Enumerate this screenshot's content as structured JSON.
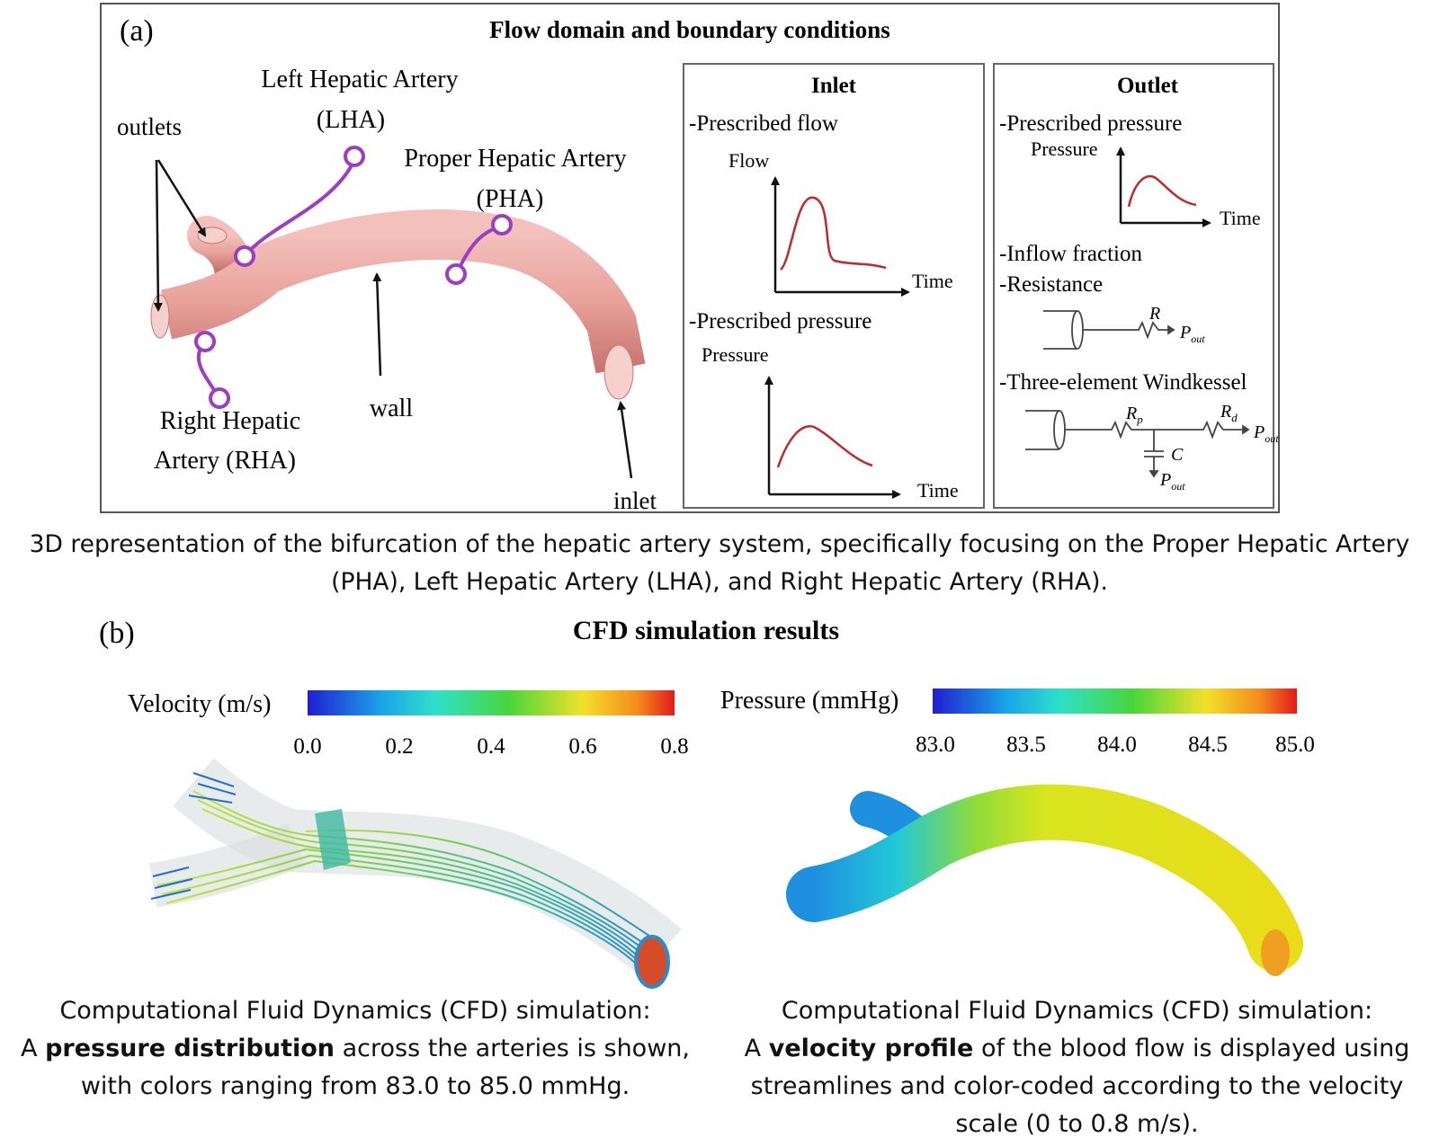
{
  "panel_a": {
    "label": "(a)",
    "title": "Flow domain and boundary conditions",
    "labels": {
      "outlets": "outlets",
      "lha_line1": "Left Hepatic Artery",
      "lha_line2": "(LHA)",
      "pha_line1": "Proper Hepatic Artery",
      "pha_line2": "(PHA)",
      "rha_line1": "Right Hepatic",
      "rha_line2": "Artery (RHA)",
      "wall": "wall",
      "inlet": "inlet"
    },
    "inlet_box": {
      "title": "Inlet",
      "item1": "-Prescribed flow",
      "flow_axis": "Flow",
      "time1": "Time",
      "item2": "-Prescribed pressure",
      "pressure_axis": "Pressure",
      "time2": "Time"
    },
    "outlet_box": {
      "title": "Outlet",
      "item1": "-Prescribed pressure",
      "pressure_axis": "Pressure",
      "time": "Time",
      "item2": "-Inflow fraction",
      "item3": "-Resistance",
      "r": "R",
      "pout1": "P",
      "pout_sub": "out",
      "item4": "-Three-element Windkessel",
      "rp": "R",
      "rp_sub": "p",
      "rd": "R",
      "rd_sub": "d",
      "c": "C",
      "pout2": "P",
      "pout3": "P"
    },
    "caption": "3D representation of the bifurcation of the hepatic artery system, specifically focusing on the Proper Hepatic Artery (PHA), Left Hepatic Artery (LHA), and Right Hepatic Artery (RHA)."
  },
  "panel_b": {
    "label": "(b)",
    "title": "CFD simulation results",
    "velocity_scale": {
      "label": "Velocity (m/s)",
      "ticks": [
        "0.0",
        "0.2",
        "0.4",
        "0.6",
        "0.8"
      ]
    },
    "pressure_scale": {
      "label": "Pressure (mmHg)",
      "ticks": [
        "83.0",
        "83.5",
        "84.0",
        "84.5",
        "85.0"
      ]
    },
    "caption_left": {
      "line1": "Computational Fluid Dynamics (CFD) simulation:",
      "pre": "A ",
      "bold": "pressure distribution",
      "post": " across the arteries is shown, with colors ranging from 83.0 to 85.0 mmHg."
    },
    "caption_right": {
      "line1": "Computational Fluid Dynamics (CFD) simulation:",
      "pre": "A ",
      "bold": "velocity profile",
      "post": " of the blood flow is displayed using streamlines and color-coded according to the velocity scale (0 to 0.8 m/s)."
    }
  }
}
